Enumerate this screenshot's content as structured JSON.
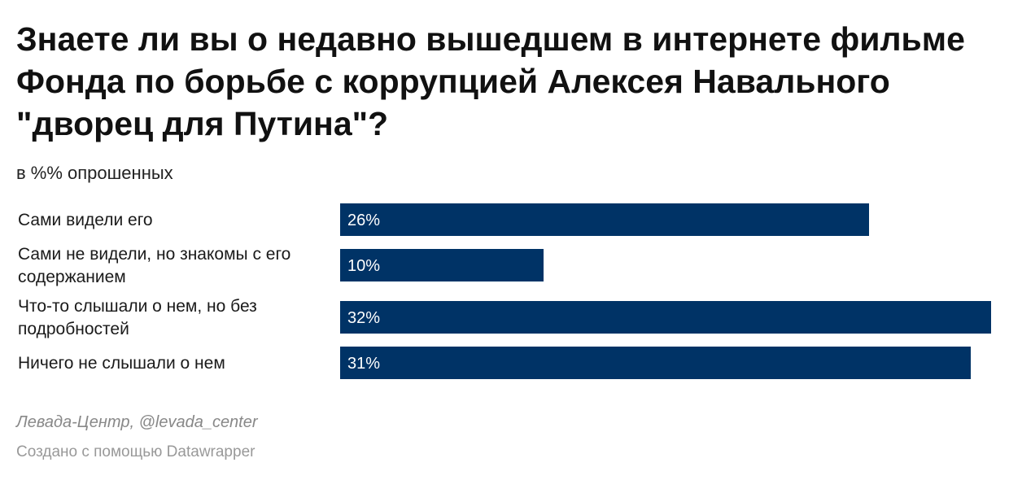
{
  "chart_data": {
    "type": "bar",
    "orientation": "horizontal",
    "title": "Знаете ли вы о недавно вышедшем в интернете фильме Фонда по борьбе с коррупцией Алексея Навального \"дворец для Путина\"?",
    "subtitle": "в %% опрошенных",
    "categories": [
      [
        "Сами видели его"
      ],
      [
        "Сами не видели, но знакомы с его",
        "содержанием"
      ],
      [
        "Что-то слышали о нем, но без",
        "подробностей"
      ],
      [
        "Ничего не слышали о нем"
      ]
    ],
    "values": [
      26,
      10,
      32,
      31
    ],
    "value_labels": [
      "26%",
      "10%",
      "32%",
      "31%"
    ],
    "xlim": [
      0,
      32
    ],
    "bar_color": "#003366",
    "grid": false
  },
  "footer": {
    "source": "Левада-Центр, @levada_center",
    "credit": "Создано с помощью Datawrapper"
  }
}
